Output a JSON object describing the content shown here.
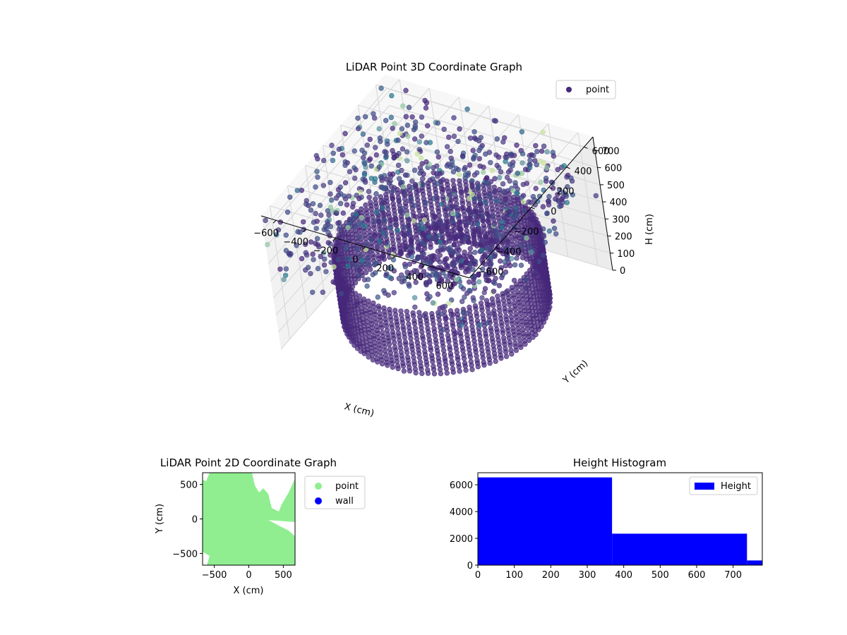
{
  "chart_data": [
    {
      "type": "scatter3d",
      "title": "LiDAR Point 3D Coordinate Graph",
      "xlabel": "X (cm)",
      "ylabel": "Y (cm)",
      "zlabel": "H (cm)",
      "x_ticks": [
        -600,
        -400,
        -200,
        0,
        200,
        400,
        600
      ],
      "y_ticks": [
        -600,
        -400,
        -200,
        0,
        200,
        400,
        600
      ],
      "z_ticks": [
        0,
        100,
        200,
        300,
        400,
        500,
        600,
        700
      ],
      "xlim": [
        -700,
        700
      ],
      "ylim": [
        -700,
        700
      ],
      "zlim": [
        0,
        780
      ],
      "z_inverted": true,
      "grid": true,
      "legend": {
        "placement": "top-right",
        "entries": [
          "point"
        ]
      },
      "colormap": "viridis",
      "marker_color": "#46287a",
      "wall_radius": 600,
      "wall_height_range": [
        0,
        370
      ]
    },
    {
      "type": "scatter",
      "title": "LiDAR Point 2D Coordinate Graph",
      "xlabel": "X (cm)",
      "ylabel": "Y (cm)",
      "x_ticks": [
        -500,
        0,
        500
      ],
      "y_ticks": [
        -500,
        0,
        500
      ],
      "xlim": [
        -670,
        670
      ],
      "ylim": [
        -670,
        670
      ],
      "legend": {
        "placement": "outside-right",
        "entries": [
          "point",
          "wall"
        ]
      },
      "series": [
        {
          "name": "point",
          "color": "#90ee90"
        },
        {
          "name": "wall",
          "color": "#0000ff"
        }
      ]
    },
    {
      "type": "bar",
      "title": "Height Histogram",
      "xlabel": "",
      "ylabel": "",
      "x_ticks": [
        0,
        100,
        200,
        300,
        400,
        500,
        600,
        700
      ],
      "y_ticks": [
        0,
        2000,
        4000,
        6000
      ],
      "xlim": [
        0,
        780
      ],
      "ylim": [
        0,
        6900
      ],
      "legend": {
        "placement": "top-right",
        "entries": [
          "Height"
        ]
      },
      "color": "#0000ff",
      "series": [
        {
          "name": "Height",
          "bins": [
            {
              "from": 0,
              "to": 368,
              "count": 6550
            },
            {
              "from": 368,
              "to": 738,
              "count": 2350
            },
            {
              "from": 738,
              "to": 780,
              "count": 350
            }
          ]
        }
      ]
    }
  ]
}
